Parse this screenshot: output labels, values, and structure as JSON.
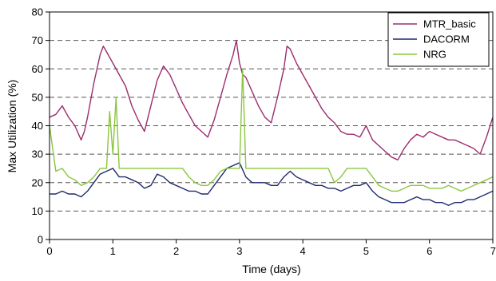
{
  "chart_data": {
    "type": "line",
    "title": "",
    "xlabel": "Time (days)",
    "ylabel": "Max Utilization (%)",
    "xlim": [
      0,
      7
    ],
    "ylim": [
      0,
      80
    ],
    "xticks": [
      0,
      1,
      2,
      3,
      4,
      5,
      6,
      7
    ],
    "yticks": [
      0,
      10,
      20,
      30,
      40,
      50,
      60,
      70,
      80
    ],
    "grid": "horizontal dashed",
    "legend_position": "top-right",
    "series": [
      {
        "name": "MTR_basic",
        "color": "#9b2d6e",
        "x": [
          0,
          0.1,
          0.2,
          0.3,
          0.4,
          0.5,
          0.55,
          0.6,
          0.7,
          0.8,
          0.85,
          0.9,
          1.0,
          1.1,
          1.2,
          1.3,
          1.4,
          1.5,
          1.6,
          1.7,
          1.8,
          1.9,
          2.0,
          2.1,
          2.2,
          2.3,
          2.4,
          2.5,
          2.6,
          2.7,
          2.8,
          2.9,
          2.95,
          3.0,
          3.05,
          3.1,
          3.2,
          3.3,
          3.4,
          3.5,
          3.6,
          3.7,
          3.75,
          3.8,
          3.9,
          4.0,
          4.1,
          4.2,
          4.3,
          4.4,
          4.5,
          4.6,
          4.7,
          4.8,
          4.9,
          5.0,
          5.1,
          5.2,
          5.3,
          5.4,
          5.5,
          5.6,
          5.7,
          5.8,
          5.9,
          6.0,
          6.1,
          6.2,
          6.3,
          6.4,
          6.5,
          6.6,
          6.7,
          6.8,
          6.9,
          7.0
        ],
        "values": [
          43,
          44,
          47,
          43,
          40,
          35,
          38,
          43,
          55,
          65,
          68,
          66,
          62,
          58,
          54,
          47,
          42,
          38,
          47,
          56,
          61,
          58,
          53,
          48,
          44,
          40,
          38,
          36,
          42,
          50,
          58,
          65,
          70,
          62,
          58,
          57,
          52,
          47,
          43,
          41,
          50,
          60,
          68,
          67,
          62,
          58,
          54,
          50,
          46,
          43,
          41,
          38,
          37,
          37,
          36,
          40,
          35,
          33,
          31,
          29,
          28,
          32,
          35,
          37,
          36,
          38,
          37,
          36,
          35,
          35,
          34,
          33,
          32,
          30,
          36,
          43
        ]
      },
      {
        "name": "DACORM",
        "color": "#1f2a6e",
        "x": [
          0,
          0.1,
          0.2,
          0.3,
          0.4,
          0.5,
          0.6,
          0.7,
          0.8,
          0.9,
          1.0,
          1.1,
          1.2,
          1.3,
          1.4,
          1.5,
          1.6,
          1.7,
          1.8,
          1.9,
          2.0,
          2.1,
          2.2,
          2.3,
          2.4,
          2.5,
          2.6,
          2.7,
          2.8,
          2.9,
          3.0,
          3.1,
          3.2,
          3.3,
          3.4,
          3.5,
          3.6,
          3.7,
          3.8,
          3.9,
          4.0,
          4.1,
          4.2,
          4.3,
          4.4,
          4.5,
          4.6,
          4.7,
          4.8,
          4.9,
          5.0,
          5.1,
          5.2,
          5.3,
          5.4,
          5.5,
          5.6,
          5.7,
          5.8,
          5.9,
          6.0,
          6.1,
          6.2,
          6.3,
          6.4,
          6.5,
          6.6,
          6.7,
          6.8,
          6.9,
          7.0
        ],
        "values": [
          16,
          16,
          17,
          16,
          16,
          15,
          17,
          20,
          23,
          24,
          25,
          22,
          22,
          21,
          20,
          18,
          19,
          23,
          22,
          20,
          19,
          18,
          17,
          17,
          16,
          16,
          19,
          22,
          25,
          26,
          27,
          22,
          20,
          20,
          20,
          19,
          19,
          22,
          24,
          22,
          21,
          20,
          19,
          19,
          18,
          18,
          17,
          18,
          19,
          19,
          20,
          17,
          15,
          14,
          13,
          13,
          13,
          14,
          15,
          14,
          14,
          13,
          13,
          12,
          13,
          13,
          14,
          14,
          15,
          16,
          17
        ]
      },
      {
        "name": "NRG",
        "color": "#8cc63f",
        "x": [
          0,
          0.1,
          0.2,
          0.3,
          0.4,
          0.5,
          0.6,
          0.7,
          0.8,
          0.9,
          0.95,
          1.0,
          1.05,
          1.1,
          1.15,
          1.2,
          1.3,
          1.4,
          1.5,
          1.6,
          1.7,
          1.8,
          1.9,
          2.0,
          2.1,
          2.2,
          2.3,
          2.4,
          2.5,
          2.6,
          2.7,
          2.8,
          2.9,
          3.0,
          3.05,
          3.1,
          3.2,
          3.3,
          3.4,
          3.5,
          3.6,
          3.7,
          3.8,
          3.9,
          4.0,
          4.1,
          4.2,
          4.3,
          4.4,
          4.5,
          4.6,
          4.7,
          4.8,
          4.9,
          5.0,
          5.1,
          5.2,
          5.3,
          5.4,
          5.5,
          5.6,
          5.7,
          5.8,
          5.9,
          6.0,
          6.1,
          6.2,
          6.3,
          6.4,
          6.5,
          6.6,
          6.7,
          6.8,
          6.9,
          7.0
        ],
        "values": [
          40,
          24,
          25,
          22,
          21,
          19,
          20,
          22,
          25,
          25,
          45,
          30,
          50,
          25,
          25,
          25,
          25,
          25,
          25,
          25,
          25,
          25,
          25,
          25,
          25,
          22,
          20,
          19,
          19,
          21,
          24,
          25,
          25,
          25,
          60,
          25,
          25,
          25,
          25,
          25,
          25,
          25,
          25,
          25,
          25,
          25,
          25,
          25,
          25,
          20,
          22,
          25,
          25,
          25,
          25,
          22,
          19,
          18,
          17,
          17,
          18,
          19,
          19,
          19,
          18,
          18,
          18,
          19,
          18,
          17,
          18,
          19,
          20,
          21,
          22
        ]
      }
    ]
  }
}
